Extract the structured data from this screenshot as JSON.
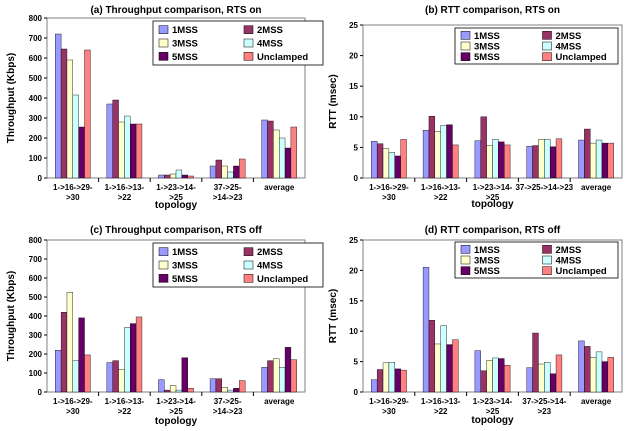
{
  "series_colors": {
    "1MSS": "#9999ff",
    "2MSS": "#993366",
    "3MSS": "#ffffcc",
    "4MSS": "#ccffff",
    "5MSS": "#660066",
    "Unclamped": "#ff8080"
  },
  "chart_data": [
    {
      "id": "a",
      "type": "bar",
      "title": "(a) Throughput comparison, RTS on",
      "xlabel": "topology",
      "ylabel": "Throughput (Kbps)",
      "ylim": [
        0,
        800
      ],
      "yticks": [
        0,
        100,
        200,
        300,
        400,
        500,
        600,
        700,
        800
      ],
      "grid": false,
      "legend_position": "top-right",
      "categories": [
        [
          "1->16->29-",
          ">30"
        ],
        [
          "1->16->13-",
          ">22"
        ],
        [
          "1->23->14-",
          ">25"
        ],
        [
          "37->25-",
          ">14->23"
        ],
        [
          "average"
        ]
      ],
      "series": [
        {
          "name": "1MSS",
          "values": [
            720,
            370,
            15,
            60,
            290
          ]
        },
        {
          "name": "2MSS",
          "values": [
            645,
            390,
            15,
            90,
            285
          ]
        },
        {
          "name": "3MSS",
          "values": [
            590,
            280,
            20,
            60,
            240
          ]
        },
        {
          "name": "4MSS",
          "values": [
            415,
            310,
            40,
            30,
            200
          ]
        },
        {
          "name": "5MSS",
          "values": [
            255,
            270,
            15,
            60,
            150
          ]
        },
        {
          "name": "Unclamped",
          "values": [
            640,
            270,
            10,
            95,
            255
          ]
        }
      ]
    },
    {
      "id": "b",
      "type": "bar",
      "title": "(b) RTT comparison, RTS on",
      "xlabel": "topology",
      "ylabel": "RTT (msec)",
      "ylim": [
        0,
        25
      ],
      "yticks": [
        0,
        5,
        10,
        15,
        20,
        25
      ],
      "grid": false,
      "legend_position": "top-right",
      "categories": [
        [
          "1->16->29-",
          ">30"
        ],
        [
          "1->16->13-",
          ">22"
        ],
        [
          "1->23->14-",
          ">25"
        ],
        [
          "37->25->14->23"
        ],
        [
          "average"
        ]
      ],
      "series": [
        {
          "name": "1MSS",
          "values": [
            6.0,
            7.8,
            6.1,
            5.2,
            6.2
          ]
        },
        {
          "name": "2MSS",
          "values": [
            5.6,
            10.1,
            10.0,
            5.3,
            8.0
          ]
        },
        {
          "name": "3MSS",
          "values": [
            4.8,
            7.6,
            5.3,
            6.3,
            5.7
          ]
        },
        {
          "name": "4MSS",
          "values": [
            4.2,
            8.6,
            6.3,
            6.3,
            6.2
          ]
        },
        {
          "name": "5MSS",
          "values": [
            3.6,
            8.7,
            5.9,
            5.1,
            5.7
          ]
        },
        {
          "name": "Unclamped",
          "values": [
            6.3,
            5.4,
            5.4,
            6.4,
            5.7
          ]
        }
      ]
    },
    {
      "id": "c",
      "type": "bar",
      "title": "(c) Throughput comparison, RTS off",
      "xlabel": "topology",
      "ylabel": "Throughput (Kbps)",
      "ylim": [
        0,
        800
      ],
      "yticks": [
        0,
        100,
        200,
        300,
        400,
        500,
        600,
        700,
        800
      ],
      "grid": false,
      "legend_position": "top-right",
      "categories": [
        [
          "1->16->29-",
          ">30"
        ],
        [
          "1->16->13-",
          ">22"
        ],
        [
          "1->23->14-",
          ">25"
        ],
        [
          "37->25-",
          ">14->23"
        ],
        [
          "average"
        ]
      ],
      "series": [
        {
          "name": "1MSS",
          "values": [
            220,
            155,
            65,
            70,
            130
          ]
        },
        {
          "name": "2MSS",
          "values": [
            420,
            165,
            10,
            70,
            165
          ]
        },
        {
          "name": "3MSS",
          "values": [
            525,
            120,
            35,
            25,
            175
          ]
        },
        {
          "name": "4MSS",
          "values": [
            165,
            340,
            10,
            10,
            130
          ]
        },
        {
          "name": "5MSS",
          "values": [
            390,
            360,
            180,
            20,
            235
          ]
        },
        {
          "name": "Unclamped",
          "values": [
            195,
            395,
            20,
            60,
            170
          ]
        }
      ]
    },
    {
      "id": "d",
      "type": "bar",
      "title": "(d) RTT comparison, RTS off",
      "xlabel": "topology",
      "ylabel": "RTT (msec)",
      "ylim": [
        0,
        25
      ],
      "yticks": [
        0,
        5,
        10,
        15,
        20,
        25
      ],
      "grid": false,
      "legend_position": "top-right",
      "categories": [
        [
          "1->16->29-",
          ">30"
        ],
        [
          "1->16->13-",
          ">22"
        ],
        [
          "1->23->14-",
          ">25"
        ],
        [
          "37->25->14-",
          ">23"
        ],
        [
          "average"
        ]
      ],
      "series": [
        {
          "name": "1MSS",
          "values": [
            2.0,
            20.5,
            6.8,
            4.0,
            8.4
          ]
        },
        {
          "name": "2MSS",
          "values": [
            3.7,
            11.8,
            3.5,
            9.7,
            7.5
          ]
        },
        {
          "name": "3MSS",
          "values": [
            4.8,
            7.9,
            5.2,
            4.6,
            5.7
          ]
        },
        {
          "name": "4MSS",
          "values": [
            4.9,
            10.9,
            5.6,
            4.9,
            6.6
          ]
        },
        {
          "name": "5MSS",
          "values": [
            3.8,
            7.8,
            5.5,
            3.0,
            5.0
          ]
        },
        {
          "name": "Unclamped",
          "values": [
            3.6,
            8.6,
            4.4,
            6.1,
            5.7
          ]
        }
      ]
    }
  ]
}
